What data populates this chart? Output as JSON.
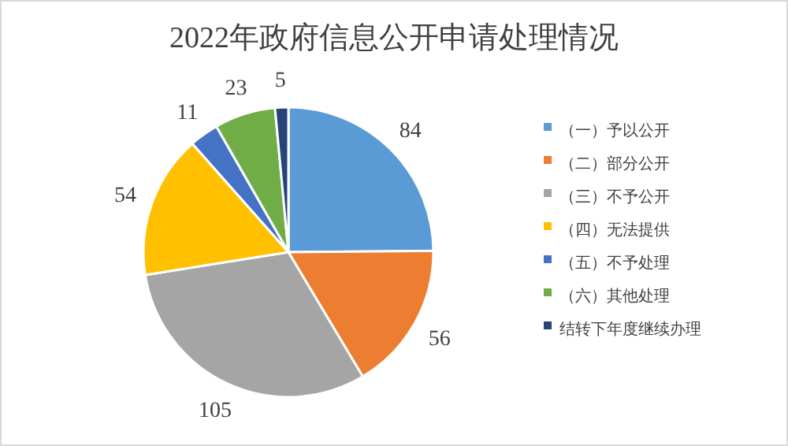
{
  "chart_data": {
    "type": "pie",
    "title": "2022年政府信息公开申请处理情况",
    "categories": [
      "（一）予以公开",
      "（二）部分公开",
      "（三）不予公开",
      "（四）无法提供",
      "（五）不予处理",
      "（六）其他处理",
      "结转下年度继续办理"
    ],
    "values": [
      84,
      56,
      105,
      54,
      11,
      23,
      5
    ],
    "colors": [
      "#5b9bd5",
      "#ed7d31",
      "#a5a5a5",
      "#ffc000",
      "#4472c4",
      "#70ad47",
      "#264478"
    ],
    "data_labels": true,
    "legend": "right"
  }
}
